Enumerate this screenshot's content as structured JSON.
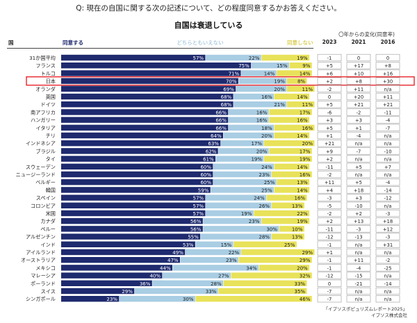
{
  "question": "Q: 現在の自国に関する次の記述について、どの程度同意するかお答えください。",
  "subtitle": "自国は衰退している",
  "header": {
    "country": "国",
    "agree": "同意する",
    "neutral": "どちらともいえない",
    "disagree": "同意しない",
    "change_title": "〇年からの変化(同意率)",
    "years": [
      "2023",
      "2021",
      "2016"
    ]
  },
  "footer": {
    "source": "「イプソスポピュリズムレポート2025」",
    "company": "イプソス株式会社"
  },
  "colors": {
    "agree": "#1e2a6e",
    "neutral": "#a9cde3",
    "disagree": "#e8e25a",
    "highlight": "#e8242a"
  },
  "highlight_row": "日本",
  "chart_data": {
    "type": "bar",
    "stacked": true,
    "orientation": "horizontal",
    "categories": [
      "31か国平均",
      "フランス",
      "トルコ",
      "日本",
      "オランダ",
      "英国",
      "ドイツ",
      "南アフリカ",
      "ハンガリー",
      "イタリア",
      "チリ",
      "インドネシア",
      "ブラジル",
      "タイ",
      "スウェーデン",
      "ニュージーランド",
      "ベルギー",
      "韓国",
      "スペイン",
      "コロンビア",
      "米国",
      "カナダ",
      "ペルー",
      "アルゼンチン",
      "インド",
      "アイルランド",
      "オーストラリア",
      "メキシコ",
      "マレーシア",
      "ポーランド",
      "スイス",
      "シンガポール"
    ],
    "series": [
      {
        "name": "同意する",
        "values": [
          57,
          75,
          71,
          70,
          69,
          68,
          68,
          66,
          66,
          66,
          64,
          63,
          62,
          61,
          60,
          60,
          60,
          59,
          57,
          57,
          57,
          56,
          56,
          55,
          53,
          49,
          47,
          44,
          40,
          36,
          29,
          23
        ]
      },
      {
        "name": "どちらともいえない",
        "values": [
          22,
          15,
          14,
          19,
          20,
          16,
          21,
          16,
          16,
          18,
          20,
          17,
          20,
          19,
          24,
          23,
          25,
          25,
          24,
          26,
          19,
          23,
          30,
          28,
          15,
          22,
          23,
          34,
          27,
          28,
          33,
          30
        ]
      },
      {
        "name": "同意しない",
        "values": [
          19,
          9,
          14,
          8,
          11,
          14,
          11,
          17,
          16,
          16,
          14,
          20,
          17,
          19,
          14,
          16,
          13,
          14,
          16,
          13,
          22,
          19,
          10,
          13,
          25,
          29,
          29,
          20,
          32,
          33,
          35,
          46
        ]
      }
    ],
    "change": {
      "2023": [
        "-1",
        "+5",
        "+6",
        "+2",
        "-2",
        "0",
        "+5",
        "-6",
        "+3",
        "+5",
        "+1",
        "+21",
        "+9",
        "+2",
        "-11",
        "-2",
        "+11",
        "+4",
        "-3",
        "-5",
        "-2",
        "+2",
        "-11",
        "-12",
        "-1",
        "+1",
        "-1",
        "-1",
        "-12",
        "0",
        "-7",
        "-7"
      ],
      "2021": [
        "0",
        "+17",
        "+10",
        "+8",
        "+11",
        "+20",
        "+21",
        "-2",
        "+3",
        "+1",
        "-4",
        "n/a",
        "-7",
        "n/a",
        "+5",
        "n/a",
        "+5",
        "+18",
        "+3",
        "-10",
        "+2",
        "+13",
        "-3",
        "-13",
        "n/a",
        "n/a",
        "+11",
        "-4",
        "-15",
        "-21",
        "n/a",
        "n/a"
      ],
      "2016": [
        "0",
        "+8",
        "+16",
        "+30",
        "n/a",
        "+11",
        "+21",
        "-11",
        "-4",
        "-7",
        "n/a",
        "n/a",
        "-10",
        "n/a",
        "+7",
        "n/a",
        "-4",
        "-14",
        "-12",
        "n/a",
        "-3",
        "+18",
        "+12",
        "-3",
        "+31",
        "n/a",
        "-2",
        "-25",
        "n/a",
        "-14",
        "n/a",
        "n/a"
      ]
    },
    "xlim": [
      0,
      100
    ],
    "value_suffix": "%"
  }
}
